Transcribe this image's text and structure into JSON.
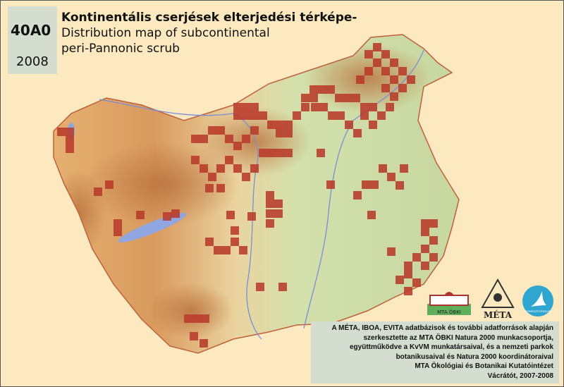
{
  "header": {
    "code": "40A0",
    "year": "2008",
    "title_hu": "Kontinentális cserjések  elterjedési térképe-",
    "title_en_line1": "Distribution map of subcontinental",
    "title_en_line2": "peri-Pannonic scrub"
  },
  "logos": {
    "obki": "MTA ÖBKI",
    "meta": "MÉTA",
    "termeszetvedelem": "TERMÉSZETVÉDELEM"
  },
  "credits": [
    "A MÉTA, IBOA, EVITA adatbázisok és további adatforrások alapján",
    "szerkesztette az MTA ÖBKI Natura 2000 munkacsoportja,",
    "együttműködve a KvVM munkatársaival, és a nemzeti parkok",
    "botanikusaival és Natura 2000 koordinátoraival",
    "MTA Ökológiai és Botanikai Kutatóintézet",
    "Vácrátót, 2007-2008"
  ],
  "colors": {
    "occurrence": "#b83a2a",
    "water": "#8fa6e0",
    "lowland": "#cfdca8",
    "upland": "#d89a5c"
  }
}
